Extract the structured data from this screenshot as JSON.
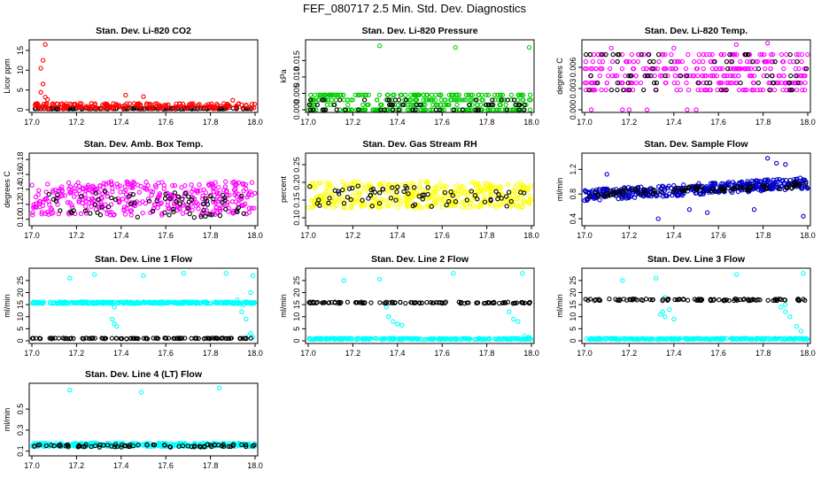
{
  "figure": {
    "title": "FEF_080717  2.5 Min. Std. Dev. Diagnostics"
  },
  "chart_data": [
    {
      "type": "scatter",
      "title": "Stan. Dev. Li-820 CO2",
      "xlabel": "",
      "ylabel": "Licor ppm",
      "xlim": [
        17.0,
        18.0
      ],
      "ylim": [
        0,
        17
      ],
      "xticks": [
        "17.0",
        "17.2",
        "17.4",
        "17.6",
        "17.8",
        "18.0"
      ],
      "yticks": [
        {
          "v": 0,
          "label": "0"
        },
        {
          "v": 5,
          "label": "5"
        },
        {
          "v": 10,
          "label": "10"
        },
        {
          "v": 15,
          "label": "15"
        }
      ],
      "series": [
        {
          "name": "black",
          "color": "#000000",
          "gen": {
            "kind": "band",
            "center": 0.3,
            "spread": 0.2,
            "n": 120
          }
        },
        {
          "name": "red",
          "color": "#ff0000",
          "gen": {
            "kind": "band",
            "center": 0.9,
            "spread": 1.4,
            "n": 200
          },
          "extra": [
            [
              17.06,
              16.5
            ],
            [
              17.05,
              12.5
            ],
            [
              17.04,
              10.5
            ],
            [
              17.05,
              6.5
            ],
            [
              17.04,
              4.4
            ],
            [
              17.06,
              3.2
            ],
            [
              17.07,
              2.6
            ],
            [
              17.5,
              3.3
            ],
            [
              17.42,
              3.7
            ],
            [
              17.9,
              2.4
            ]
          ]
        }
      ]
    },
    {
      "type": "scatter",
      "title": "Stan. Dev. Li-820 Pressure",
      "xlabel": "",
      "ylabel": "kPa",
      "xlim": [
        17.0,
        18.0
      ],
      "ylim": [
        0,
        0.0205
      ],
      "xticks": [
        "17.0",
        "17.2",
        "17.4",
        "17.6",
        "17.8",
        "18.0"
      ],
      "yticks": [
        {
          "v": 0,
          "label": "0.000"
        },
        {
          "v": 0.005,
          "label": "0.005"
        },
        {
          "v": 0.01,
          "label": "0.010"
        },
        {
          "v": 0.015,
          "label": "0.015"
        }
      ],
      "series": [
        {
          "name": "green",
          "color": "#00cc00",
          "gen": {
            "kind": "levels",
            "levels": [
              0,
              0.0015,
              0.003,
              0.0045
            ],
            "n": 320
          }
        },
        {
          "name": "black",
          "color": "#000000",
          "gen": {
            "kind": "levels",
            "levels": [
              0,
              0.0015,
              0.003
            ],
            "n": 60
          }
        }
      ],
      "extra_series": [
        {
          "color": "#00cc00",
          "points": [
            [
              17.32,
              0.0195
            ],
            [
              17.66,
              0.019
            ],
            [
              17.99,
              0.019
            ]
          ]
        }
      ]
    },
    {
      "type": "scatter",
      "title": "Stan. Dev. Li-820 Temp.",
      "xlabel": "",
      "ylabel": "degrees C",
      "xlim": [
        17.0,
        18.0
      ],
      "ylim": [
        0,
        0.0095
      ],
      "xticks": [
        "17.0",
        "17.2",
        "17.4",
        "17.6",
        "17.8",
        "18.0"
      ],
      "yticks": [
        {
          "v": 0,
          "label": "0.000"
        },
        {
          "v": 0.003,
          "label": "0.003"
        },
        {
          "v": 0.006,
          "label": "0.006"
        }
      ],
      "series": [
        {
          "name": "magenta",
          "color": "#ff00ff",
          "gen": {
            "kind": "levels",
            "levels": [
              0.0028,
              0.0038,
              0.0048,
              0.0058,
              0.0068,
              0.0078
            ],
            "n": 320
          },
          "extra": [
            [
              17.03,
              0
            ],
            [
              17.17,
              0
            ],
            [
              17.2,
              0
            ],
            [
              17.28,
              0
            ],
            [
              17.46,
              0
            ],
            [
              17.5,
              0
            ],
            [
              17.12,
              0.0087
            ],
            [
              17.68,
              0.0092
            ],
            [
              17.82,
              0.0094
            ],
            [
              17.4,
              0.0087
            ]
          ]
        },
        {
          "name": "black",
          "color": "#000000",
          "gen": {
            "kind": "levels",
            "levels": [
              0.0028,
              0.0038,
              0.0048,
              0.0058,
              0.0068,
              0.0078
            ],
            "n": 70
          }
        }
      ]
    },
    {
      "type": "scatter",
      "title": "Stan. Dev. Amb. Box Temp.",
      "xlabel": "",
      "ylabel": "degrees C",
      "xlim": [
        17.0,
        18.0
      ],
      "ylim": [
        0.095,
        0.185
      ],
      "xticks": [
        "17.0",
        "17.2",
        "17.4",
        "17.6",
        "17.8",
        "18.0"
      ],
      "yticks": [
        {
          "v": 0.1,
          "label": "0.10"
        },
        {
          "v": 0.12,
          "label": "0.12"
        },
        {
          "v": 0.14,
          "label": "0.14"
        },
        {
          "v": 0.16,
          "label": "0.16"
        },
        {
          "v": 0.18,
          "label": "0.18"
        }
      ],
      "series": [
        {
          "name": "magenta",
          "color": "#ff00ff",
          "gen": {
            "kind": "band",
            "center": 0.128,
            "spread": 0.045,
            "n": 380
          }
        },
        {
          "name": "black",
          "color": "#000000",
          "gen": {
            "kind": "band",
            "center": 0.12,
            "spread": 0.035,
            "n": 70
          }
        }
      ]
    },
    {
      "type": "scatter",
      "title": "Stan. Dev. Gas Stream RH",
      "xlabel": "",
      "ylabel": "percent",
      "xlim": [
        17.0,
        18.0
      ],
      "ylim": [
        0.085,
        0.275
      ],
      "xticks": [
        "17.0",
        "17.2",
        "17.4",
        "17.6",
        "17.8",
        "18.0"
      ],
      "yticks": [
        {
          "v": 0.1,
          "label": "0.10"
        },
        {
          "v": 0.15,
          "label": "0.15"
        },
        {
          "v": 0.2,
          "label": "0.20"
        },
        {
          "v": 0.25,
          "label": "0.25"
        }
      ],
      "series": [
        {
          "name": "yellow",
          "color": "#ffff00",
          "gen": {
            "kind": "band",
            "center": 0.165,
            "spread": 0.075,
            "n": 380
          }
        },
        {
          "name": "black",
          "color": "#000000",
          "gen": {
            "kind": "band",
            "center": 0.16,
            "spread": 0.06,
            "n": 70
          }
        }
      ]
    },
    {
      "type": "scatter",
      "title": "Stan. Dev. Sample Flow",
      "xlabel": "",
      "ylabel": "ml/min",
      "xlim": [
        17.0,
        18.0
      ],
      "ylim": [
        0.33,
        1.42
      ],
      "xticks": [
        "17.0",
        "17.2",
        "17.4",
        "17.6",
        "17.8",
        "18.0"
      ],
      "yticks": [
        {
          "v": 0.4,
          "label": "0.4"
        },
        {
          "v": 0.8,
          "label": "0.8"
        },
        {
          "v": 1.2,
          "label": "1.2"
        }
      ],
      "series": [
        {
          "name": "blue",
          "color": "#0000cc",
          "gen": {
            "kind": "trend",
            "start": 0.78,
            "end": 0.98,
            "spread": 0.09,
            "n": 420
          },
          "extra": [
            [
              17.82,
              1.38
            ],
            [
              17.86,
              1.3
            ],
            [
              17.9,
              1.28
            ],
            [
              17.1,
              1.12
            ],
            [
              17.47,
              0.55
            ],
            [
              17.33,
              0.4
            ],
            [
              17.98,
              0.44
            ],
            [
              17.76,
              0.55
            ],
            [
              17.55,
              0.5
            ]
          ]
        },
        {
          "name": "black",
          "color": "#000000",
          "gen": {
            "kind": "trend",
            "start": 0.8,
            "end": 0.95,
            "spread": 0.05,
            "n": 90
          }
        }
      ]
    },
    {
      "type": "scatter",
      "title": "Stan. Dev. Line 1 Flow",
      "xlabel": "",
      "ylabel": "ml/min",
      "xlim": [
        17.0,
        18.0
      ],
      "ylim": [
        0,
        29
      ],
      "xticks": [
        "17.0",
        "17.2",
        "17.4",
        "17.6",
        "17.8",
        "18.0"
      ],
      "yticks": [
        {
          "v": 0,
          "label": "0"
        },
        {
          "v": 5,
          "label": "5"
        },
        {
          "v": 10,
          "label": "10"
        },
        {
          "v": 15,
          "label": "15"
        },
        {
          "v": 20,
          "label": "20"
        },
        {
          "v": 25,
          "label": "25"
        }
      ],
      "series": [
        {
          "name": "cyan",
          "color": "#00ffff",
          "gen": {
            "kind": "band",
            "center": 15.8,
            "spread": 0.8,
            "n": 330
          },
          "extra": [
            [
              17.17,
              26
            ],
            [
              17.28,
              27.5
            ],
            [
              17.5,
              27
            ],
            [
              17.68,
              28
            ],
            [
              17.87,
              28
            ],
            [
              17.99,
              27
            ],
            [
              17.36,
              9
            ],
            [
              17.37,
              7
            ],
            [
              17.38,
              6
            ],
            [
              17.37,
              14
            ],
            [
              17.94,
              12
            ],
            [
              17.96,
              9
            ],
            [
              17.98,
              3
            ],
            [
              17.97,
              2
            ],
            [
              17.99,
              1.5
            ],
            [
              17.95,
              15
            ],
            [
              17.92,
              17
            ],
            [
              17.98,
              20
            ]
          ]
        },
        {
          "name": "black",
          "color": "#000000",
          "gen": {
            "kind": "band",
            "center": 1.0,
            "spread": 0.3,
            "n": 110
          }
        }
      ]
    },
    {
      "type": "scatter",
      "title": "Stan. Dev. Line 2 Flow",
      "xlabel": "",
      "ylabel": "ml/min",
      "xlim": [
        17.0,
        18.0
      ],
      "ylim": [
        0,
        29
      ],
      "xticks": [
        "17.0",
        "17.2",
        "17.4",
        "17.6",
        "17.8",
        "18.0"
      ],
      "yticks": [
        {
          "v": 0,
          "label": "0"
        },
        {
          "v": 5,
          "label": "5"
        },
        {
          "v": 10,
          "label": "10"
        },
        {
          "v": 15,
          "label": "15"
        },
        {
          "v": 20,
          "label": "20"
        },
        {
          "v": 25,
          "label": "25"
        }
      ],
      "series": [
        {
          "name": "cyan",
          "color": "#00ffff",
          "gen": {
            "kind": "band",
            "center": 0.8,
            "spread": 0.5,
            "n": 300
          },
          "extra": [
            [
              17.16,
              25
            ],
            [
              17.32,
              25.5
            ],
            [
              17.65,
              28
            ],
            [
              17.96,
              28
            ],
            [
              17.35,
              14
            ],
            [
              17.36,
              10
            ],
            [
              17.38,
              8
            ],
            [
              17.4,
              7
            ],
            [
              17.42,
              6.5
            ],
            [
              17.9,
              12
            ],
            [
              17.92,
              9
            ],
            [
              17.94,
              8
            ],
            [
              17.97,
              2
            ],
            [
              17.99,
              1.5
            ]
          ]
        },
        {
          "name": "black",
          "color": "#000000",
          "gen": {
            "kind": "band",
            "center": 15.8,
            "spread": 0.6,
            "n": 100
          }
        }
      ]
    },
    {
      "type": "scatter",
      "title": "Stan. Dev. Line 3 Flow",
      "xlabel": "",
      "ylabel": "ml/min",
      "xlim": [
        17.0,
        18.0
      ],
      "ylim": [
        0,
        29
      ],
      "xticks": [
        "17.0",
        "17.2",
        "17.4",
        "17.6",
        "17.8",
        "18.0"
      ],
      "yticks": [
        {
          "v": 0,
          "label": "0"
        },
        {
          "v": 5,
          "label": "5"
        },
        {
          "v": 10,
          "label": "10"
        },
        {
          "v": 15,
          "label": "15"
        },
        {
          "v": 20,
          "label": "20"
        },
        {
          "v": 25,
          "label": "25"
        }
      ],
      "series": [
        {
          "name": "cyan",
          "color": "#00ffff",
          "gen": {
            "kind": "band",
            "center": 0.8,
            "spread": 0.5,
            "n": 300
          },
          "extra": [
            [
              17.17,
              25
            ],
            [
              17.32,
              26
            ],
            [
              17.68,
              27.5
            ],
            [
              17.98,
              28
            ],
            [
              17.34,
              11
            ],
            [
              17.35,
              12
            ],
            [
              17.36,
              10
            ],
            [
              17.38,
              13
            ],
            [
              17.4,
              9
            ],
            [
              17.36,
              18
            ],
            [
              17.88,
              14
            ],
            [
              17.9,
              12
            ],
            [
              17.92,
              10
            ],
            [
              17.95,
              6
            ],
            [
              17.97,
              4
            ],
            [
              17.9,
              15
            ]
          ]
        },
        {
          "name": "black",
          "color": "#000000",
          "gen": {
            "kind": "band",
            "center": 17.0,
            "spread": 0.7,
            "n": 100
          }
        }
      ]
    },
    {
      "type": "scatter",
      "title": "Stan. Dev. Line 4 (LT) Flow",
      "xlabel": "",
      "ylabel": "ml/min",
      "xlim": [
        17.0,
        18.0
      ],
      "ylim": [
        0.08,
        0.72
      ],
      "xticks": [
        "17.0",
        "17.2",
        "17.4",
        "17.6",
        "17.8",
        "18.0"
      ],
      "yticks": [
        {
          "v": 0.1,
          "label": "0.1"
        },
        {
          "v": 0.3,
          "label": "0.3"
        },
        {
          "v": 0.5,
          "label": "0.5"
        }
      ],
      "series": [
        {
          "name": "cyan",
          "color": "#00ffff",
          "gen": {
            "kind": "band",
            "center": 0.16,
            "spread": 0.035,
            "n": 360
          },
          "extra": [
            [
              17.17,
              0.68
            ],
            [
              17.49,
              0.66
            ],
            [
              17.84,
              0.7
            ]
          ]
        },
        {
          "name": "black",
          "color": "#000000",
          "gen": {
            "kind": "band",
            "center": 0.15,
            "spread": 0.025,
            "n": 80
          }
        }
      ]
    }
  ]
}
